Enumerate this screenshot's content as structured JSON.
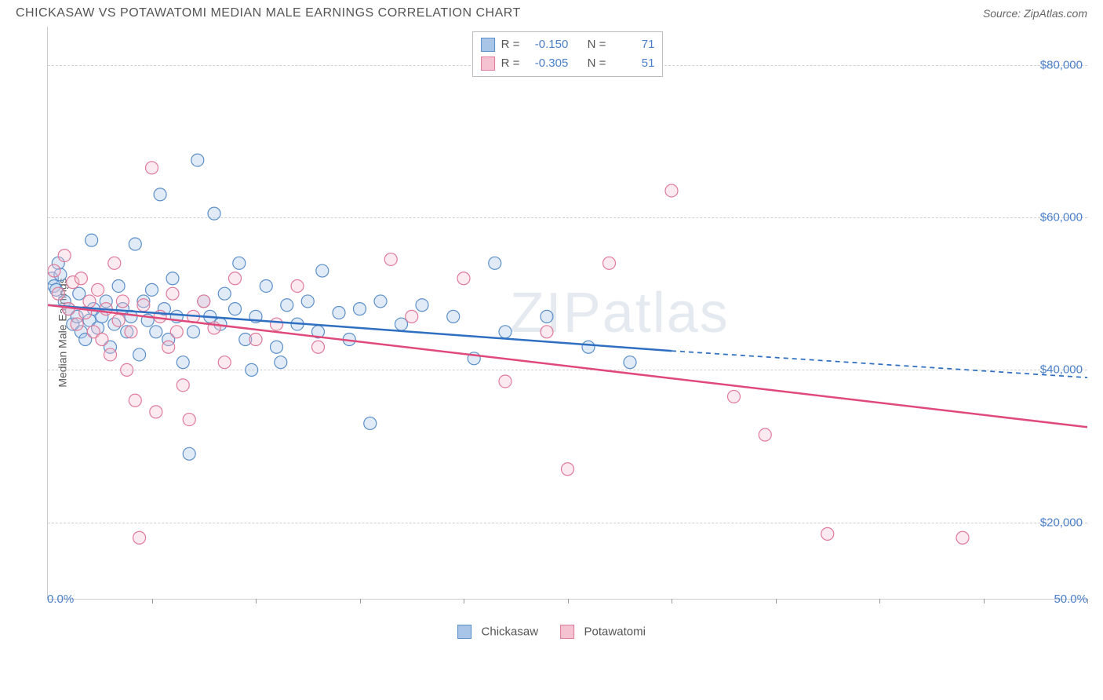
{
  "title": "CHICKASAW VS POTAWATOMI MEDIAN MALE EARNINGS CORRELATION CHART",
  "source": "Source: ZipAtlas.com",
  "y_axis_label": "Median Male Earnings",
  "watermark": "ZIPatlas",
  "chart": {
    "type": "scatter",
    "xlim": [
      0,
      50
    ],
    "ylim": [
      10000,
      85000
    ],
    "x_tick_start": "0.0%",
    "x_tick_end": "50.0%",
    "x_ticks": [
      0,
      5,
      10,
      15,
      20,
      25,
      30,
      35,
      40,
      45,
      50
    ],
    "y_ticks": [
      {
        "value": 20000,
        "label": "$20,000"
      },
      {
        "value": 40000,
        "label": "$40,000"
      },
      {
        "value": 60000,
        "label": "$60,000"
      },
      {
        "value": 80000,
        "label": "$80,000"
      }
    ],
    "grid_color": "#d0d0d0",
    "background_color": "#ffffff",
    "marker_radius": 8,
    "marker_fill_opacity": 0.35,
    "marker_stroke_width": 1.2,
    "line_width": 2.5,
    "dash_pattern": "6 5",
    "series": [
      {
        "id": "chickasaw",
        "label": "Chickasaw",
        "color_fill": "#a8c5e8",
        "color_stroke": "#5b8fc9",
        "trend_line_color": "#2f6fc1",
        "R": "-0.150",
        "N": "71",
        "trend": {
          "x1": 0,
          "y1": 48500,
          "x2": 30,
          "y2": 42500,
          "x2_dash": 50,
          "y2_dash": 39000
        },
        "points": [
          [
            0.2,
            52000
          ],
          [
            0.3,
            51000
          ],
          [
            0.4,
            50500
          ],
          [
            0.5,
            54000
          ],
          [
            0.6,
            52500
          ],
          [
            0.8,
            49000
          ],
          [
            1.0,
            48000
          ],
          [
            1.2,
            46000
          ],
          [
            1.4,
            47000
          ],
          [
            1.5,
            50000
          ],
          [
            1.6,
            45000
          ],
          [
            1.8,
            44000
          ],
          [
            2.0,
            46500
          ],
          [
            2.1,
            57000
          ],
          [
            2.2,
            48000
          ],
          [
            2.4,
            45500
          ],
          [
            2.6,
            47000
          ],
          [
            2.8,
            49000
          ],
          [
            3.0,
            43000
          ],
          [
            3.2,
            46000
          ],
          [
            3.4,
            51000
          ],
          [
            3.6,
            48000
          ],
          [
            3.8,
            45000
          ],
          [
            4.0,
            47000
          ],
          [
            4.2,
            56500
          ],
          [
            4.4,
            42000
          ],
          [
            4.6,
            49000
          ],
          [
            4.8,
            46500
          ],
          [
            5.0,
            50500
          ],
          [
            5.2,
            45000
          ],
          [
            5.4,
            63000
          ],
          [
            5.6,
            48000
          ],
          [
            5.8,
            44000
          ],
          [
            6.0,
            52000
          ],
          [
            6.2,
            47000
          ],
          [
            6.5,
            41000
          ],
          [
            6.8,
            29000
          ],
          [
            7.0,
            45000
          ],
          [
            7.2,
            67500
          ],
          [
            7.5,
            49000
          ],
          [
            7.8,
            47000
          ],
          [
            8.0,
            60500
          ],
          [
            8.3,
            46000
          ],
          [
            8.5,
            50000
          ],
          [
            9.0,
            48000
          ],
          [
            9.2,
            54000
          ],
          [
            9.5,
            44000
          ],
          [
            9.8,
            40000
          ],
          [
            10.0,
            47000
          ],
          [
            10.5,
            51000
          ],
          [
            11.0,
            43000
          ],
          [
            11.2,
            41000
          ],
          [
            11.5,
            48500
          ],
          [
            12.0,
            46000
          ],
          [
            12.5,
            49000
          ],
          [
            13.0,
            45000
          ],
          [
            13.2,
            53000
          ],
          [
            14.0,
            47500
          ],
          [
            14.5,
            44000
          ],
          [
            15.0,
            48000
          ],
          [
            15.5,
            33000
          ],
          [
            16.0,
            49000
          ],
          [
            17.0,
            46000
          ],
          [
            18.0,
            48500
          ],
          [
            19.5,
            47000
          ],
          [
            20.5,
            41500
          ],
          [
            21.5,
            54000
          ],
          [
            22.0,
            45000
          ],
          [
            24.0,
            47000
          ],
          [
            26.0,
            43000
          ],
          [
            28.0,
            41000
          ]
        ]
      },
      {
        "id": "potawatomi",
        "label": "Potawatomi",
        "color_fill": "#f4c2d0",
        "color_stroke": "#e07a9a",
        "trend_line_color": "#e04a7a",
        "R": "-0.305",
        "N": "51",
        "trend": {
          "x1": 0,
          "y1": 48500,
          "x2": 50,
          "y2": 32500,
          "x2_dash": 50,
          "y2_dash": 32500
        },
        "points": [
          [
            0.3,
            53000
          ],
          [
            0.5,
            50000
          ],
          [
            0.8,
            55000
          ],
          [
            1.0,
            48000
          ],
          [
            1.2,
            51500
          ],
          [
            1.4,
            46000
          ],
          [
            1.6,
            52000
          ],
          [
            1.8,
            47500
          ],
          [
            2.0,
            49000
          ],
          [
            2.2,
            45000
          ],
          [
            2.4,
            50500
          ],
          [
            2.6,
            44000
          ],
          [
            2.8,
            48000
          ],
          [
            3.0,
            42000
          ],
          [
            3.2,
            54000
          ],
          [
            3.4,
            46500
          ],
          [
            3.6,
            49000
          ],
          [
            3.8,
            40000
          ],
          [
            4.0,
            45000
          ],
          [
            4.2,
            36000
          ],
          [
            4.4,
            18000
          ],
          [
            4.6,
            48500
          ],
          [
            5.0,
            66500
          ],
          [
            5.2,
            34500
          ],
          [
            5.4,
            47000
          ],
          [
            5.8,
            43000
          ],
          [
            6.0,
            50000
          ],
          [
            6.2,
            45000
          ],
          [
            6.5,
            38000
          ],
          [
            6.8,
            33500
          ],
          [
            7.0,
            47000
          ],
          [
            7.5,
            49000
          ],
          [
            8.0,
            45500
          ],
          [
            8.5,
            41000
          ],
          [
            9.0,
            52000
          ],
          [
            10.0,
            44000
          ],
          [
            11.0,
            46000
          ],
          [
            12.0,
            51000
          ],
          [
            13.0,
            43000
          ],
          [
            16.5,
            54500
          ],
          [
            17.5,
            47000
          ],
          [
            20.0,
            52000
          ],
          [
            22.0,
            38500
          ],
          [
            24.0,
            45000
          ],
          [
            25.0,
            27000
          ],
          [
            27.0,
            54000
          ],
          [
            30.0,
            63500
          ],
          [
            33.0,
            36500
          ],
          [
            34.5,
            31500
          ],
          [
            37.5,
            18500
          ],
          [
            44.0,
            18000
          ]
        ]
      }
    ]
  },
  "stats_labels": {
    "r_prefix": "R = ",
    "n_prefix": "N = "
  }
}
